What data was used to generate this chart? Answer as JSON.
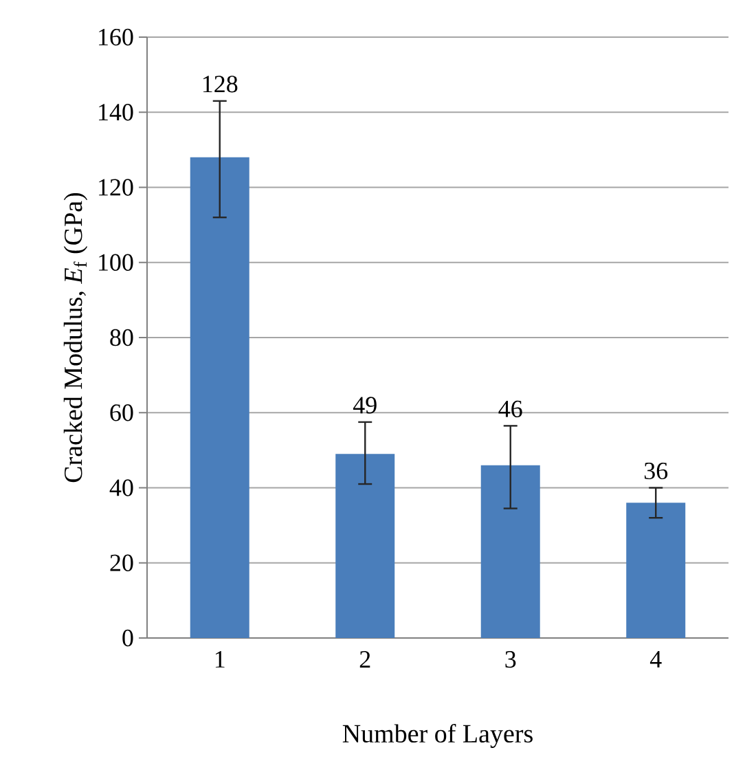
{
  "chart_data": {
    "type": "bar",
    "categories": [
      "1",
      "2",
      "3",
      "4"
    ],
    "values": [
      128,
      49,
      46,
      36
    ],
    "errors": [
      [
        112,
        143
      ],
      [
        41,
        57.5
      ],
      [
        34.5,
        56.5
      ],
      [
        32,
        40
      ]
    ],
    "color": "#4a7ebb",
    "data_labels": true,
    "xlabel": "Number of Layers",
    "ylabel": "Cracked Modulus, *E*$_{f}$ (GPa)",
    "ylim": [
      0,
      160
    ],
    "yticks": [
      0,
      20,
      40,
      60,
      80,
      100,
      120,
      140,
      160
    ],
    "grid": "y"
  }
}
